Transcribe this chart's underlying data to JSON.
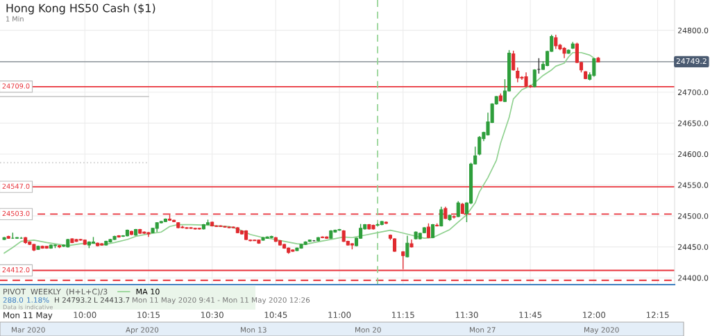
{
  "chart_data": {
    "type": "candlestick",
    "title": "Hong Kong HS50 Cash ($1)",
    "subtitle": "1 Min",
    "x": [
      "2020-05-11T09:41",
      "2020-05-11T09:42",
      "2020-05-11T09:43",
      "2020-05-11T09:44",
      "2020-05-11T09:45",
      "2020-05-11T09:46",
      "2020-05-11T09:47",
      "2020-05-11T09:48",
      "2020-05-11T09:49",
      "2020-05-11T09:50",
      "2020-05-11T09:51",
      "2020-05-11T09:52",
      "2020-05-11T09:53",
      "2020-05-11T09:54",
      "2020-05-11T09:55",
      "2020-05-11T09:56",
      "2020-05-11T09:57",
      "2020-05-11T09:58",
      "2020-05-11T09:59",
      "2020-05-11T10:00",
      "2020-05-11T10:01",
      "2020-05-11T10:02",
      "2020-05-11T10:03",
      "2020-05-11T10:04",
      "2020-05-11T10:05",
      "2020-05-11T10:06",
      "2020-05-11T10:07",
      "2020-05-11T10:08",
      "2020-05-11T10:09",
      "2020-05-11T10:10",
      "2020-05-11T10:11",
      "2020-05-11T10:12",
      "2020-05-11T10:13",
      "2020-05-11T10:14",
      "2020-05-11T10:15",
      "2020-05-11T10:16",
      "2020-05-11T10:17",
      "2020-05-11T10:18",
      "2020-05-11T10:19",
      "2020-05-11T10:20",
      "2020-05-11T10:21",
      "2020-05-11T10:22",
      "2020-05-11T10:23",
      "2020-05-11T10:24",
      "2020-05-11T10:25",
      "2020-05-11T10:26",
      "2020-05-11T10:27",
      "2020-05-11T10:28",
      "2020-05-11T10:29",
      "2020-05-11T10:30",
      "2020-05-11T10:31",
      "2020-05-11T10:32",
      "2020-05-11T10:33",
      "2020-05-11T10:34",
      "2020-05-11T10:35",
      "2020-05-11T10:36",
      "2020-05-11T10:37",
      "2020-05-11T10:38",
      "2020-05-11T10:39",
      "2020-05-11T10:40",
      "2020-05-11T10:41",
      "2020-05-11T10:42",
      "2020-05-11T10:43",
      "2020-05-11T10:44",
      "2020-05-11T10:45",
      "2020-05-11T10:46",
      "2020-05-11T10:47",
      "2020-05-11T10:48",
      "2020-05-11T10:49",
      "2020-05-11T10:50",
      "2020-05-11T10:51",
      "2020-05-11T10:52",
      "2020-05-11T10:53",
      "2020-05-11T10:54",
      "2020-05-11T10:55",
      "2020-05-11T10:56",
      "2020-05-11T10:57",
      "2020-05-11T10:58",
      "2020-05-11T10:59",
      "2020-05-11T11:00",
      "2020-05-11T11:01",
      "2020-05-11T11:02",
      "2020-05-11T11:03",
      "2020-05-11T11:04",
      "2020-05-11T11:05",
      "2020-05-11T11:06",
      "2020-05-11T11:07",
      "2020-05-11T11:08",
      "2020-05-11T11:09",
      "2020-05-11T11:10",
      "2020-05-11T11:11",
      "2020-05-11T11:12",
      "2020-05-11T11:13",
      "2020-05-11T11:15",
      "2020-05-11T11:16",
      "2020-05-11T11:17",
      "2020-05-11T11:18",
      "2020-05-11T11:19",
      "2020-05-11T11:20",
      "2020-05-11T11:21",
      "2020-05-11T11:22",
      "2020-05-11T11:23",
      "2020-05-11T11:24",
      "2020-05-11T11:25",
      "2020-05-11T11:26",
      "2020-05-11T11:27",
      "2020-05-11T11:28",
      "2020-05-11T11:29",
      "2020-05-11T11:30",
      "2020-05-11T11:31",
      "2020-05-11T11:32",
      "2020-05-11T11:33",
      "2020-05-11T11:34",
      "2020-05-11T11:35",
      "2020-05-11T11:36",
      "2020-05-11T11:37",
      "2020-05-11T11:38",
      "2020-05-11T11:39",
      "2020-05-11T11:40",
      "2020-05-11T11:41",
      "2020-05-11T11:42",
      "2020-05-11T11:43",
      "2020-05-11T11:44",
      "2020-05-11T11:45",
      "2020-05-11T11:46",
      "2020-05-11T11:47",
      "2020-05-11T11:48",
      "2020-05-11T11:49",
      "2020-05-11T11:50",
      "2020-05-11T11:51",
      "2020-05-11T11:52",
      "2020-05-11T11:53",
      "2020-05-11T11:54",
      "2020-05-11T11:55",
      "2020-05-11T11:56",
      "2020-05-11T11:57",
      "2020-05-11T11:58",
      "2020-05-11T11:59",
      "2020-05-11T12:00",
      "2020-05-11T12:01"
    ],
    "ohlc": [
      [
        24462,
        24466,
        24461,
        24465
      ],
      [
        24467,
        24468,
        24463,
        24464
      ],
      [
        24464,
        24473,
        24463,
        24464
      ],
      [
        24464,
        24466,
        24463,
        24465
      ],
      [
        24464,
        24466,
        24463,
        24464
      ],
      [
        24465,
        24466,
        24455,
        24457
      ],
      [
        24458,
        24459,
        24453,
        24454
      ],
      [
        24454,
        24455,
        24443,
        24445
      ],
      [
        24446,
        24452,
        24445,
        24451
      ],
      [
        24451,
        24452,
        24447,
        24448
      ],
      [
        24451,
        24451,
        24447,
        24448
      ],
      [
        24448,
        24454,
        24447,
        24453
      ],
      [
        24452,
        24454,
        24448,
        24453
      ],
      [
        24452,
        24453,
        24448,
        24450
      ],
      [
        24451,
        24454,
        24450,
        24453
      ],
      [
        24450,
        24463,
        24449,
        24462
      ],
      [
        24463,
        24464,
        24456,
        24457
      ],
      [
        24462,
        24463,
        24458,
        24459
      ],
      [
        24462,
        24463,
        24460,
        24461
      ],
      [
        24461,
        24462,
        24453,
        24454
      ],
      [
        24453,
        24459,
        24448,
        24458
      ],
      [
        24456,
        24466,
        24455,
        24458
      ],
      [
        24456,
        24457,
        24451,
        24452
      ],
      [
        24455,
        24456,
        24452,
        24453
      ],
      [
        24453,
        24460,
        24452,
        24459
      ],
      [
        24458,
        24463,
        24457,
        24462
      ],
      [
        24462,
        24468,
        24461,
        24467
      ],
      [
        24468,
        24469,
        24465,
        24466
      ],
      [
        24467,
        24469,
        24466,
        24468
      ],
      [
        24468,
        24478,
        24467,
        24477
      ],
      [
        24475,
        24476,
        24469,
        24470
      ],
      [
        24469,
        24479,
        24468,
        24478
      ],
      [
        24478,
        24479,
        24471,
        24472
      ],
      [
        24474,
        24475,
        24471,
        24472
      ],
      [
        24473,
        24474,
        24466,
        24471
      ],
      [
        24473,
        24481,
        24472,
        24480
      ],
      [
        24480,
        24490,
        24474,
        24489
      ],
      [
        24489,
        24492,
        24488,
        24491
      ],
      [
        24491,
        24496,
        24490,
        24495
      ],
      [
        24495,
        24502,
        24492,
        24493
      ],
      [
        24493,
        24494,
        24490,
        24491
      ],
      [
        24489,
        24490,
        24480,
        24481
      ],
      [
        24482,
        24484,
        24480,
        24481
      ],
      [
        24481,
        24482,
        24479,
        24480
      ],
      [
        24481,
        24482,
        24479,
        24480
      ],
      [
        24480,
        24481,
        24478,
        24479
      ],
      [
        24480,
        24481,
        24478,
        24479
      ],
      [
        24479,
        24487,
        24478,
        24486
      ],
      [
        24486,
        24494,
        24485,
        24489
      ],
      [
        24490,
        24491,
        24483,
        24484
      ],
      [
        24484,
        24485,
        24482,
        24483
      ],
      [
        24484,
        24485,
        24482,
        24483
      ],
      [
        24483,
        24484,
        24481,
        24482
      ],
      [
        24482,
        24483,
        24480,
        24481
      ],
      [
        24482,
        24483,
        24480,
        24481
      ],
      [
        24481,
        24482,
        24472,
        24473
      ],
      [
        24476,
        24477,
        24470,
        24471
      ],
      [
        24476,
        24477,
        24461,
        24462
      ],
      [
        24461,
        24462,
        24459,
        24460
      ],
      [
        24461,
        24462,
        24460,
        24460
      ],
      [
        24461,
        24462,
        24455,
        24456
      ],
      [
        24461,
        24466,
        24460,
        24465
      ],
      [
        24464,
        24467,
        24463,
        24466
      ],
      [
        24465,
        24468,
        24464,
        24467
      ],
      [
        24465,
        24466,
        24458,
        24459
      ],
      [
        24460,
        24461,
        24452,
        24453
      ],
      [
        24454,
        24455,
        24447,
        24448
      ],
      [
        24448,
        24449,
        24439,
        24441
      ],
      [
        24445,
        24446,
        24442,
        24443
      ],
      [
        24444,
        24449,
        24443,
        24448
      ],
      [
        24448,
        24455,
        24447,
        24454
      ],
      [
        24454,
        24459,
        24453,
        24458
      ],
      [
        24459,
        24462,
        24458,
        24461
      ],
      [
        24460,
        24461,
        24459,
        24460
      ],
      [
        24460,
        24466,
        24459,
        24465
      ],
      [
        24466,
        24467,
        24464,
        24465
      ],
      [
        24466,
        24467,
        24463,
        24464
      ],
      [
        24464,
        24477,
        24463,
        24476
      ],
      [
        24474,
        24478,
        24473,
        24477
      ],
      [
        24477,
        24479,
        24476,
        24478
      ],
      [
        24476,
        24477,
        24458,
        24459
      ],
      [
        24459,
        24460,
        24452,
        24453
      ],
      [
        24455,
        24456,
        24446,
        24453
      ],
      [
        24452,
        24465,
        24451,
        24464
      ],
      [
        24464,
        24487,
        24463,
        24480
      ],
      [
        24479,
        24487,
        24478,
        24486
      ],
      [
        24486,
        24487,
        24478,
        24479
      ],
      [
        24485,
        24486,
        24478,
        24479
      ],
      [
        24485,
        24488,
        24484,
        24486
      ],
      [
        24486,
        24492,
        24485,
        24491
      ],
      [
        24490,
        24491,
        24487,
        24488
      ],
      [
        24469,
        24470,
        24461,
        24464
      ],
      [
        24463,
        24464,
        24442,
        24443
      ],
      [
        24442,
        24443,
        24414,
        24436
      ],
      [
        24434,
        24468,
        24433,
        24456
      ],
      [
        24455,
        24462,
        24449,
        24450
      ],
      [
        24463,
        24475,
        24462,
        24474
      ],
      [
        24463,
        24473,
        24462,
        24472
      ],
      [
        24473,
        24482,
        24472,
        24481
      ],
      [
        24482,
        24488,
        24464,
        24465
      ],
      [
        24465,
        24487,
        24464,
        24486
      ],
      [
        24485,
        24488,
        24483,
        24484
      ],
      [
        24484,
        24515,
        24483,
        24510
      ],
      [
        24512,
        24515,
        24495,
        24496
      ],
      [
        24494,
        24502,
        24492,
        24501
      ],
      [
        24499,
        24501,
        24496,
        24498
      ],
      [
        24499,
        24524,
        24498,
        24521
      ],
      [
        24519,
        24521,
        24503,
        24504
      ],
      [
        24504,
        24522,
        24490,
        24521
      ],
      [
        24521,
        24586,
        24519,
        24584
      ],
      [
        24584,
        24612,
        24583,
        24597
      ],
      [
        24600,
        24629,
        24598,
        24627
      ],
      [
        24625,
        24636,
        24621,
        24635
      ],
      [
        24631,
        24667,
        24630,
        24652
      ],
      [
        24651,
        24682,
        24650,
        24681
      ],
      [
        24681,
        24694,
        24680,
        24693
      ],
      [
        24694,
        24698,
        24685,
        24686
      ],
      [
        24685,
        24721,
        24684,
        24702
      ],
      [
        24702,
        24768,
        24701,
        24763
      ],
      [
        24762,
        24767,
        24735,
        24736
      ],
      [
        24734,
        24740,
        24716,
        24723
      ],
      [
        24724,
        24726,
        24720,
        24723
      ],
      [
        24725,
        24732,
        24708,
        24710
      ],
      [
        24710,
        24712,
        24707,
        24709
      ],
      [
        24709,
        24737,
        24708,
        24736
      ],
      [
        24737,
        24755,
        24730,
        24737
      ],
      [
        24737,
        24750,
        24736,
        24745
      ],
      [
        24743,
        24767,
        24742,
        24766
      ],
      [
        24766,
        24793,
        24765,
        24790
      ],
      [
        24788,
        24793,
        24770,
        24775
      ],
      [
        24776,
        24778,
        24768,
        24770
      ],
      [
        24771,
        24773,
        24755,
        24763
      ],
      [
        24763,
        24769,
        24762,
        24768
      ],
      [
        24771,
        24781,
        24770,
        24778
      ],
      [
        24778,
        24780,
        24747,
        24748
      ],
      [
        24748,
        24749,
        24732,
        24736
      ],
      [
        24733,
        24734,
        24721,
        24722
      ],
      [
        24721,
        24732,
        24719,
        24728
      ],
      [
        24727,
        24755,
        24725,
        24754
      ],
      [
        24755,
        24757,
        24749,
        24749
      ]
    ],
    "colors": [
      "#2e9e3b",
      "#e02a2f",
      "#2e9e3b",
      "#2e9e3b",
      "#2e9e3b",
      "#e02a2f",
      "#e02a2f",
      "#e02a2f",
      "#2e9e3b",
      "#e02a2f",
      "#e02a2f",
      "#2e9e3b",
      "#2e9e3b",
      "#e02a2f",
      "#2e9e3b",
      "#2e9e3b",
      "#e02a2f",
      "#e02a2f",
      "#e02a2f",
      "#e02a2f",
      "#2e9e3b",
      "#2e9e3b",
      "#e02a2f",
      "#e02a2f",
      "#2e9e3b",
      "#2e9e3b",
      "#2e9e3b",
      "#e02a2f",
      "#2e9e3b",
      "#2e9e3b",
      "#e02a2f",
      "#2e9e3b",
      "#e02a2f",
      "#e02a2f",
      "#e02a2f",
      "#2e9e3b",
      "#2e9e3b",
      "#2e9e3b",
      "#2e9e3b",
      "#e02a2f",
      "#e02a2f",
      "#e02a2f",
      "#e02a2f",
      "#e02a2f",
      "#e02a2f",
      "#e02a2f",
      "#e02a2f",
      "#2e9e3b",
      "#2e9e3b",
      "#e02a2f",
      "#e02a2f",
      "#e02a2f",
      "#e02a2f",
      "#e02a2f",
      "#e02a2f",
      "#e02a2f",
      "#e02a2f",
      "#e02a2f",
      "#e02a2f",
      "#e02a2f",
      "#e02a2f",
      "#2e9e3b",
      "#2e9e3b",
      "#2e9e3b",
      "#e02a2f",
      "#e02a2f",
      "#e02a2f",
      "#e02a2f",
      "#e02a2f",
      "#2e9e3b",
      "#2e9e3b",
      "#2e9e3b",
      "#2e9e3b",
      "#333333",
      "#2e9e3b",
      "#e02a2f",
      "#e02a2f",
      "#2e9e3b",
      "#2e9e3b",
      "#2e9e3b",
      "#e02a2f",
      "#e02a2f",
      "#e02a2f",
      "#2e9e3b",
      "#2e9e3b",
      "#2e9e3b",
      "#e02a2f",
      "#e02a2f",
      "#2e9e3b",
      "#2e9e3b",
      "#e02a2f",
      "#e02a2f",
      "#e02a2f",
      "#e02a2f",
      "#2e9e3b",
      "#e02a2f",
      "#2e9e3b",
      "#2e9e3b",
      "#2e9e3b",
      "#e02a2f",
      "#2e9e3b",
      "#e02a2f",
      "#2e9e3b",
      "#e02a2f",
      "#2e9e3b",
      "#e02a2f",
      "#2e9e3b",
      "#e02a2f",
      "#2e9e3b",
      "#2e9e3b",
      "#2e9e3b",
      "#2e9e3b",
      "#2e9e3b",
      "#2e9e3b",
      "#2e9e3b",
      "#2e9e3b",
      "#e02a2f",
      "#2e9e3b",
      "#2e9e3b",
      "#e02a2f",
      "#e02a2f",
      "#e02a2f",
      "#e02a2f",
      "#e02a2f",
      "#2e9e3b",
      "#333333",
      "#2e9e3b",
      "#2e9e3b",
      "#2e9e3b",
      "#e02a2f",
      "#e02a2f",
      "#e02a2f",
      "#2e9e3b",
      "#2e9e3b",
      "#e02a2f",
      "#e02a2f",
      "#e02a2f",
      "#2e9e3b",
      "#2e9e3b",
      "#e02a2f"
    ],
    "series": [
      {
        "name": "MA 10",
        "type": "line",
        "color": "#8fd18f",
        "x": [
          "2020-05-11T09:41",
          "2020-05-11T09:43",
          "2020-05-11T09:45",
          "2020-05-11T09:48",
          "2020-05-11T09:51",
          "2020-05-11T09:54",
          "2020-05-11T09:56",
          "2020-05-11T09:59",
          "2020-05-11T10:02",
          "2020-05-11T10:04",
          "2020-05-11T10:07",
          "2020-05-11T10:10",
          "2020-05-11T10:12",
          "2020-05-11T10:15",
          "2020-05-11T10:18",
          "2020-05-11T10:20",
          "2020-05-11T10:22",
          "2020-05-11T10:25",
          "2020-05-11T10:29",
          "2020-05-11T10:31",
          "2020-05-11T10:34",
          "2020-05-11T10:36",
          "2020-05-11T10:39",
          "2020-05-11T10:42",
          "2020-05-11T10:44",
          "2020-05-11T10:47",
          "2020-05-11T10:50",
          "2020-05-11T10:52",
          "2020-05-11T10:54",
          "2020-05-11T10:58",
          "2020-05-11T11:01",
          "2020-05-11T11:03",
          "2020-05-11T11:06",
          "2020-05-11T11:09",
          "2020-05-11T11:12",
          "2020-05-11T11:14",
          "2020-05-11T11:17",
          "2020-05-11T11:20",
          "2020-05-11T11:22",
          "2020-05-11T11:26",
          "2020-05-11T11:28",
          "2020-05-11T11:30",
          "2020-05-11T11:32",
          "2020-05-11T11:33",
          "2020-05-11T11:35",
          "2020-05-11T11:37",
          "2020-05-11T11:38",
          "2020-05-11T11:40",
          "2020-05-11T11:41",
          "2020-05-11T11:43",
          "2020-05-11T11:45",
          "2020-05-11T11:46",
          "2020-05-11T11:48",
          "2020-05-11T11:50",
          "2020-05-11T11:51",
          "2020-05-11T11:53",
          "2020-05-11T11:54",
          "2020-05-11T11:55",
          "2020-05-11T11:57",
          "2020-05-11T11:59",
          "2020-05-11T12:00"
        ],
        "values": [
          24440,
          24449,
          24459,
          24461,
          24457,
          24454,
          24452,
          24455,
          24456,
          24453,
          24457,
          24462,
          24467,
          24471,
          24474,
          24483,
          24486,
          24486,
          24485,
          24484,
          24483,
          24479,
          24470,
          24465,
          24463,
          24459,
          24455,
          24454,
          24457,
          24462,
          24466,
          24465,
          24469,
          24473,
          24477,
          24474,
          24469,
          24464,
          24465,
          24478,
          24490,
          24502,
          24521,
          24539,
          24562,
          24590,
          24618,
          24659,
          24689,
          24704,
          24710,
          24715,
          24727,
          24736,
          24742,
          24747,
          24757,
          24764,
          24764,
          24760,
          24755
        ]
      },
      {
        "type": "line",
        "color": "#cccccc",
        "line_style": "solid",
        "x": [
          "2020-05-11T09:40",
          "2020-05-11T10:15"
        ],
        "values": [
          24693,
          24693
        ]
      },
      {
        "type": "line",
        "color": "#cccccc",
        "line_style": "dotted",
        "x": [
          "2020-05-11T09:40",
          "2020-05-11T10:15"
        ],
        "values": [
          24586,
          24586
        ]
      }
    ],
    "ref_lines": [
      {
        "axis": "y",
        "value": 24749.2,
        "label": "24749.2",
        "color": "#9aa0a6",
        "line_style": "solid"
      },
      {
        "axis": "y",
        "value": 24709.0,
        "label": "24709.0",
        "color": "#e8323a",
        "line_style": "solid"
      },
      {
        "axis": "y",
        "value": 24547.0,
        "label": "24547.0",
        "color": "#e8323a",
        "line_style": "solid"
      },
      {
        "axis": "y",
        "value": 24503.0,
        "label": "24503.0",
        "color": "#e8323a",
        "line_style": "dashed"
      },
      {
        "axis": "y",
        "value": 24412.0,
        "label": "24412.0",
        "color": "#e8323a",
        "line_style": "solid"
      },
      {
        "axis": "y",
        "value": 24396,
        "label": null,
        "color": "#e8323a",
        "line_style": "dashed"
      },
      {
        "axis": "x",
        "value": "2020-05-11T11:09",
        "label": null,
        "color": "#8fd18f",
        "line_style": "dashed"
      }
    ],
    "xlim": [
      "2020-05-11T09:40",
      "2020-05-11T12:19"
    ],
    "xticks": [
      {
        "value": "2020-05-11T10:00",
        "label": "10:00"
      },
      {
        "value": "2020-05-11T10:15",
        "label": "10:15"
      },
      {
        "value": "2020-05-11T10:30",
        "label": "10:30"
      },
      {
        "value": "2020-05-11T10:45",
        "label": "10:45"
      },
      {
        "value": "2020-05-11T11:00",
        "label": "11:00"
      },
      {
        "value": "2020-05-11T11:15",
        "label": "11:15"
      },
      {
        "value": "2020-05-11T11:30",
        "label": "11:30"
      },
      {
        "value": "2020-05-11T11:45",
        "label": "11:45"
      },
      {
        "value": "2020-05-11T12:00",
        "label": "12:00"
      },
      {
        "value": "2020-05-11T12:15",
        "label": "12:15"
      }
    ],
    "ylim": [
      24389,
      24849
    ],
    "yticks": [
      {
        "value": 24400,
        "label": "24400.0"
      },
      {
        "value": 24450,
        "label": "24450.0"
      },
      {
        "value": 24500,
        "label": "24500.0"
      },
      {
        "value": 24550,
        "label": "24550.0"
      },
      {
        "value": 24600,
        "label": "24600.0"
      },
      {
        "value": 24650,
        "label": "24650.0"
      },
      {
        "value": 24700,
        "label": "24700.0"
      },
      {
        "value": 24800,
        "label": "24800.0"
      }
    ],
    "grid": true,
    "legend": "bottom left",
    "annotations": [
      "PIVOT  WEEKLY  (H+L+C)/3",
      "288.0",
      "1.18%",
      "H 24793.2",
      "L 24413.7",
      "Mon 11 May 2020 9:41 - Mon 11 May 2020 12:26",
      "Data is indicative",
      "Mon 11 May",
      "Mar 2020",
      "Apr 2020",
      "Mon 13",
      "Mon 20",
      "Mon 27",
      "May 2020"
    ]
  }
}
